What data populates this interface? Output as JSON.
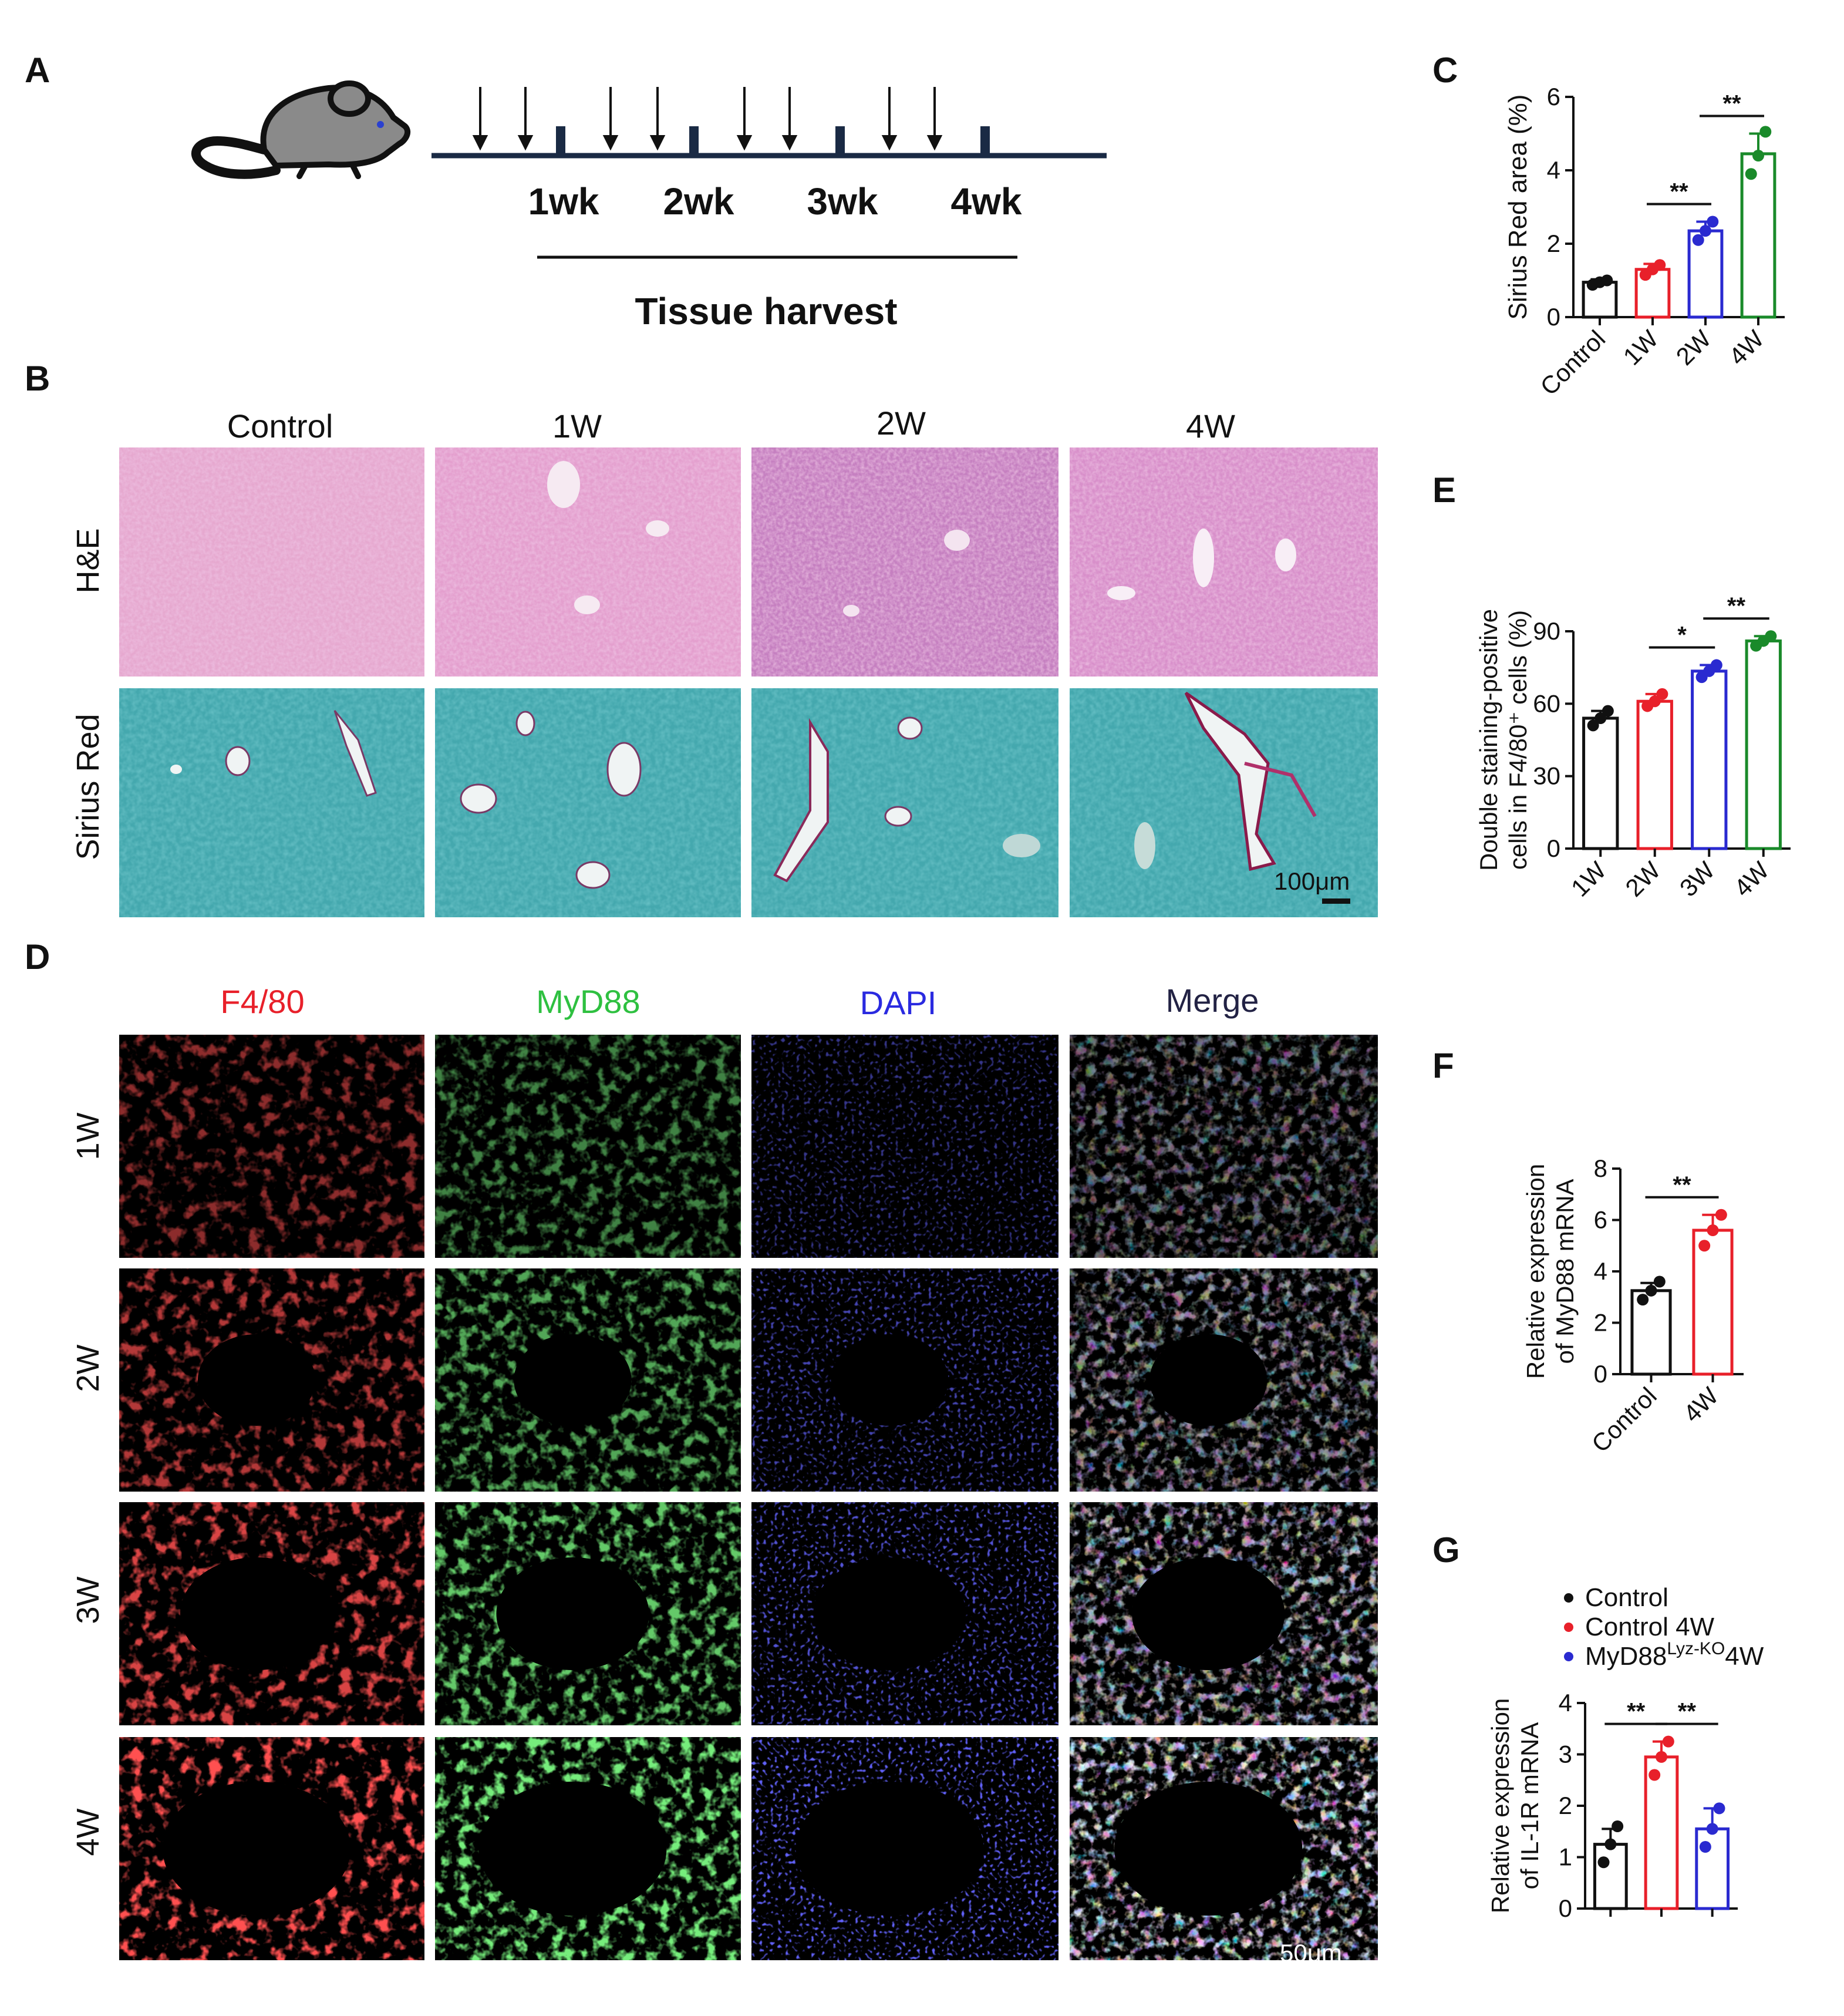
{
  "panel_labels": {
    "a": "A",
    "b": "B",
    "c": "C",
    "d": "D",
    "e": "E",
    "f": "F",
    "g": "G"
  },
  "timeline": {
    "weeks": [
      "1wk",
      "2wk",
      "3wk",
      "4wk"
    ],
    "harvest_label": "Tissue harvest"
  },
  "panel_b": {
    "columns": [
      "Control",
      "1W",
      "2W",
      "4W"
    ],
    "rows": [
      "H&E",
      "Sirius Red"
    ],
    "scale_bar": "100μm"
  },
  "panel_d": {
    "columns": [
      "F4/80",
      "MyD88",
      "DAPI",
      "Merge"
    ],
    "column_colors": [
      "#e8202a",
      "#2ec040",
      "#2a2ae0",
      "#222244"
    ],
    "rows": [
      "1W",
      "2W",
      "3W",
      "4W"
    ],
    "scale_bar": "50μm"
  },
  "chart_data": [
    {
      "panel": "C",
      "type": "bar",
      "ylabel": "Sirius Red area (%)",
      "categories": [
        "Control",
        "1W",
        "2W",
        "4W"
      ],
      "values": [
        0.95,
        1.3,
        2.35,
        4.45
      ],
      "errors": [
        0.08,
        0.15,
        0.25,
        0.55
      ],
      "points": [
        [
          0.88,
          0.95,
          1.0
        ],
        [
          1.15,
          1.3,
          1.42
        ],
        [
          2.1,
          2.35,
          2.6
        ],
        [
          3.9,
          4.4,
          5.05
        ]
      ],
      "colors": [
        "#111111",
        "#e8202a",
        "#2a2ad0",
        "#1a8a2a"
      ],
      "ylim": [
        0,
        6
      ],
      "yticks": [
        0,
        2,
        4,
        6
      ],
      "significance": [
        {
          "from": 1,
          "to": 2,
          "label": "**"
        },
        {
          "from": 2,
          "to": 3,
          "label": "**"
        }
      ]
    },
    {
      "panel": "E",
      "type": "bar",
      "ylabel_lines": [
        "Double staining-positive",
        "cells in F4/80⁺ cells (%)"
      ],
      "categories": [
        "1W",
        "2W",
        "3W",
        "4W"
      ],
      "values": [
        54,
        61,
        73.5,
        86
      ],
      "errors": [
        3,
        3,
        2.5,
        2
      ],
      "points": [
        [
          51,
          54,
          57
        ],
        [
          59,
          61,
          64
        ],
        [
          71,
          73.5,
          76
        ],
        [
          84,
          86,
          88
        ]
      ],
      "colors": [
        "#111111",
        "#e8202a",
        "#2a2ad0",
        "#1a8a2a"
      ],
      "ylim": [
        0,
        90
      ],
      "yticks": [
        0,
        30,
        60,
        90
      ],
      "significance": [
        {
          "from": 1,
          "to": 2,
          "label": "*"
        },
        {
          "from": 2,
          "to": 3,
          "label": "**"
        }
      ]
    },
    {
      "panel": "F",
      "type": "bar",
      "ylabel_lines": [
        "Relative expression",
        "of MyD88 mRNA"
      ],
      "categories": [
        "Control",
        "4W"
      ],
      "values": [
        3.25,
        5.6
      ],
      "errors": [
        0.3,
        0.6
      ],
      "points": [
        [
          2.9,
          3.25,
          3.6
        ],
        [
          5.0,
          5.6,
          6.2
        ]
      ],
      "colors": [
        "#111111",
        "#e8202a"
      ],
      "ylim": [
        0,
        8
      ],
      "yticks": [
        0,
        2,
        4,
        6,
        8
      ],
      "significance": [
        {
          "from": 0,
          "to": 1,
          "label": "**"
        }
      ]
    },
    {
      "panel": "G",
      "type": "bar",
      "ylabel_lines": [
        "Relative expression",
        "of IL-1R mRNA"
      ],
      "categories": [
        "",
        "",
        ""
      ],
      "values": [
        1.25,
        2.95,
        1.55
      ],
      "errors": [
        0.3,
        0.3,
        0.4
      ],
      "points": [
        [
          0.9,
          1.25,
          1.6
        ],
        [
          2.6,
          2.95,
          3.25
        ],
        [
          1.2,
          1.55,
          1.95
        ]
      ],
      "colors": [
        "#111111",
        "#e8202a",
        "#2a2ad0"
      ],
      "ylim": [
        0,
        4
      ],
      "yticks": [
        0,
        1,
        2,
        3,
        4
      ],
      "significance": [
        {
          "from": 0,
          "to": 1,
          "label": "**"
        },
        {
          "from": 1,
          "to": 2,
          "label": "**"
        }
      ],
      "legend": [
        {
          "text": "Control",
          "color": "#111111"
        },
        {
          "text": "Control 4W",
          "color": "#e8202a"
        },
        {
          "text": "MyD88",
          "sup": "Lyz-KO",
          "suffix": "4W",
          "color": "#2a2ad0"
        }
      ],
      "legend_position": "top"
    }
  ]
}
